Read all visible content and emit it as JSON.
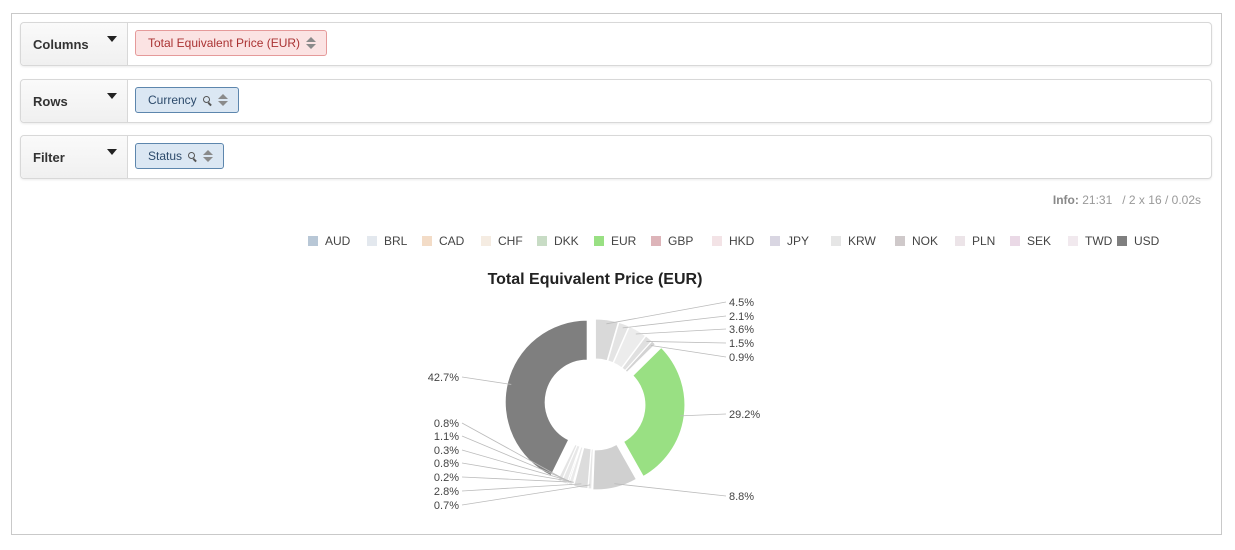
{
  "columns": {
    "label": "Columns",
    "pill": "Total Equivalent Price (EUR)"
  },
  "rows": {
    "label": "Rows",
    "pill": "Currency"
  },
  "filter": {
    "label": "Filter",
    "pill": "Status"
  },
  "info": {
    "key": "Info:",
    "time": "21:31",
    "dims": "2 x 16",
    "duration": "0.02s"
  },
  "icons": {
    "dropdown": "caret-down-icon",
    "sort": "sort-icon",
    "search": "search-icon"
  },
  "colors": {
    "eur_slice": "#99e083",
    "usd_slice": "#7f7f7f",
    "pill_columns": "#fbe3e3",
    "pill_rows": "#dbe7f3"
  },
  "chart_data": {
    "type": "pie",
    "donut": true,
    "title": "Total Equivalent Price (EUR)",
    "legend_position": "top",
    "legend": [
      "AUD",
      "BRL",
      "CAD",
      "CHF",
      "DKK",
      "EUR",
      "GBP",
      "HKD",
      "JPY",
      "KRW",
      "NOK",
      "PLN",
      "SEK",
      "TWD",
      "USD"
    ],
    "legend_colors": [
      "#b8c7d6",
      "#e3e8ee",
      "#f3dcc7",
      "#f5ece2",
      "#c8dcc5",
      "#99e083",
      "#ddb4b9",
      "#f3e3e6",
      "#d9d6e2",
      "#e6e6e6",
      "#cfc9ca",
      "#ece4e8",
      "#ead9e6",
      "#f1e9ee",
      "#7f7f7f"
    ],
    "slices": [
      {
        "label": "4.5%",
        "value": 4.5,
        "color": "#d9d9d9"
      },
      {
        "label": "2.1%",
        "value": 2.1,
        "color": "#e4e4e4"
      },
      {
        "label": "3.6%",
        "value": 3.6,
        "color": "#ececec"
      },
      {
        "label": "1.5%",
        "value": 1.5,
        "color": "#e0e0e0"
      },
      {
        "label": "0.9%",
        "value": 0.9,
        "color": "#d3d3d3"
      },
      {
        "label": "29.2%",
        "value": 29.2,
        "color": "#99e083"
      },
      {
        "label": "8.8%",
        "value": 8.8,
        "color": "#d0d0d0"
      },
      {
        "label": "0.7%",
        "value": 0.7,
        "color": "#e6e6e6"
      },
      {
        "label": "2.8%",
        "value": 2.8,
        "color": "#dcdcdc"
      },
      {
        "label": "0.2%",
        "value": 0.2,
        "color": "#e2e2e2"
      },
      {
        "label": "0.8%",
        "value": 0.8,
        "color": "#eaeaea"
      },
      {
        "label": "0.3%",
        "value": 0.3,
        "color": "#dedede"
      },
      {
        "label": "1.1%",
        "value": 1.1,
        "color": "#e8e8e8"
      },
      {
        "label": "0.8%",
        "value": 0.8,
        "color": "#e4e4e4"
      },
      {
        "label": "42.7%",
        "value": 42.7,
        "color": "#7f7f7f"
      }
    ]
  }
}
